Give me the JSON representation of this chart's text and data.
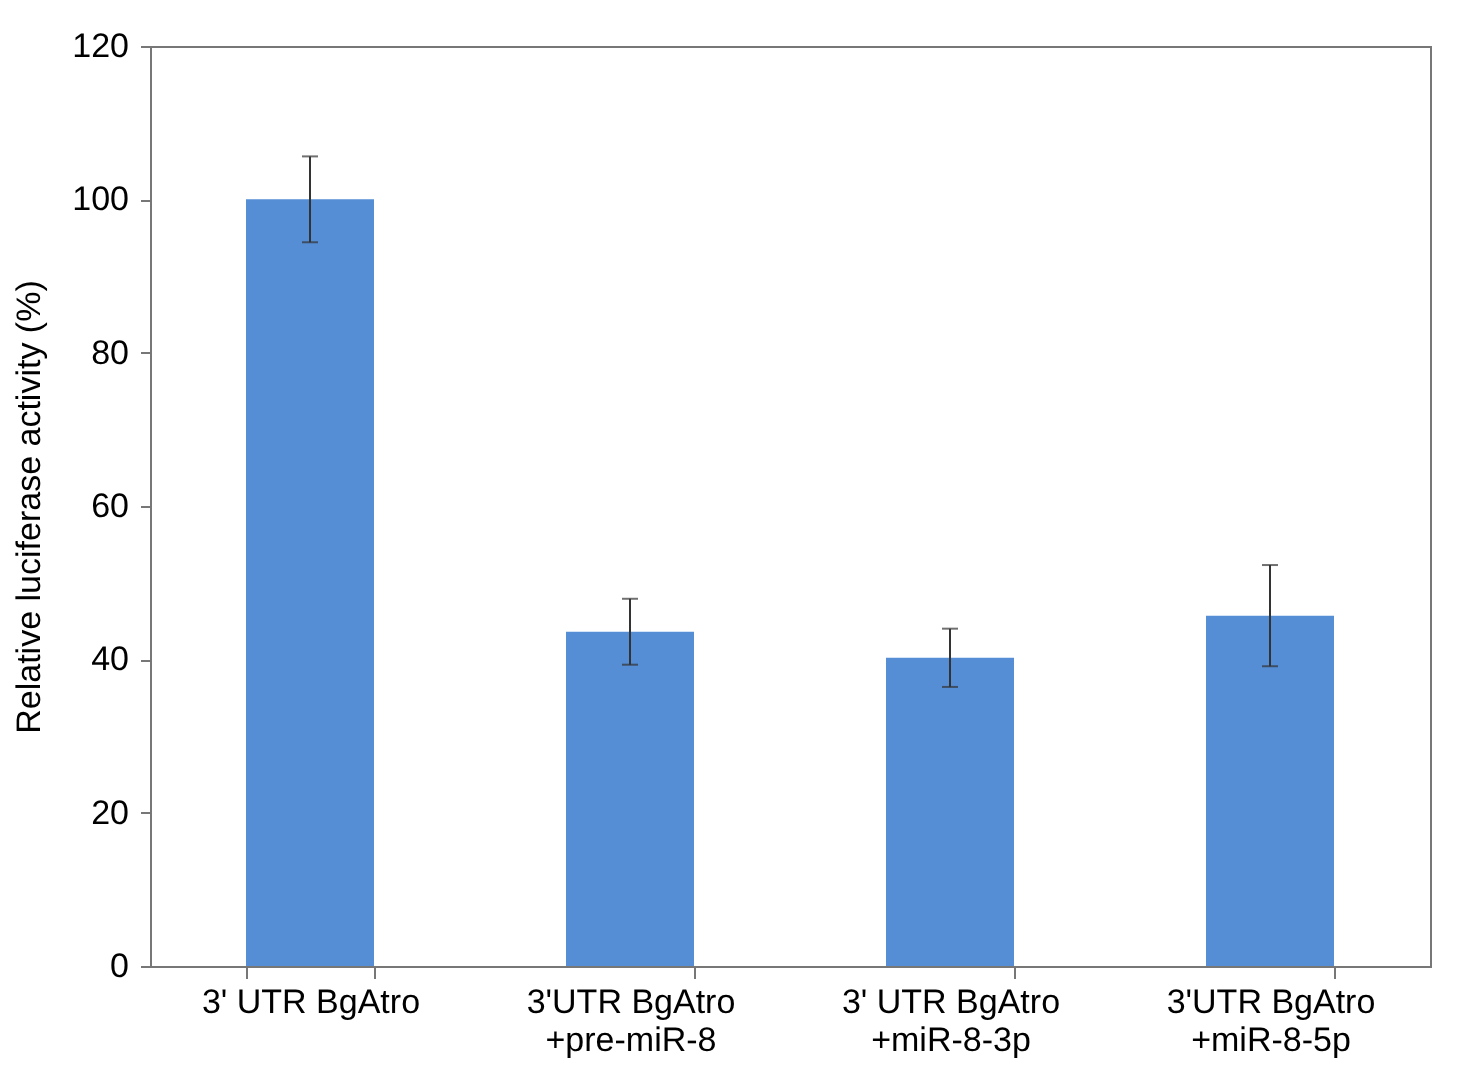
{
  "chart_data": {
    "type": "bar",
    "ylabel": "Relative luciferase activity (%)",
    "categories": [
      "3' UTR BgAtro",
      "3'UTR BgAtro\n+pre-miR-8",
      "3' UTR BgAtro\n+miR-8-3p",
      "3'UTR BgAtro\n+miR-8-5p"
    ],
    "values": [
      100,
      43.6,
      40.2,
      45.7
    ],
    "errors": [
      5.6,
      4.3,
      3.8,
      6.6
    ],
    "color": "#558ed5",
    "ylim": [
      0,
      120
    ],
    "yticks": [
      0,
      20,
      40,
      60,
      80,
      100,
      120
    ],
    "grid": false
  }
}
